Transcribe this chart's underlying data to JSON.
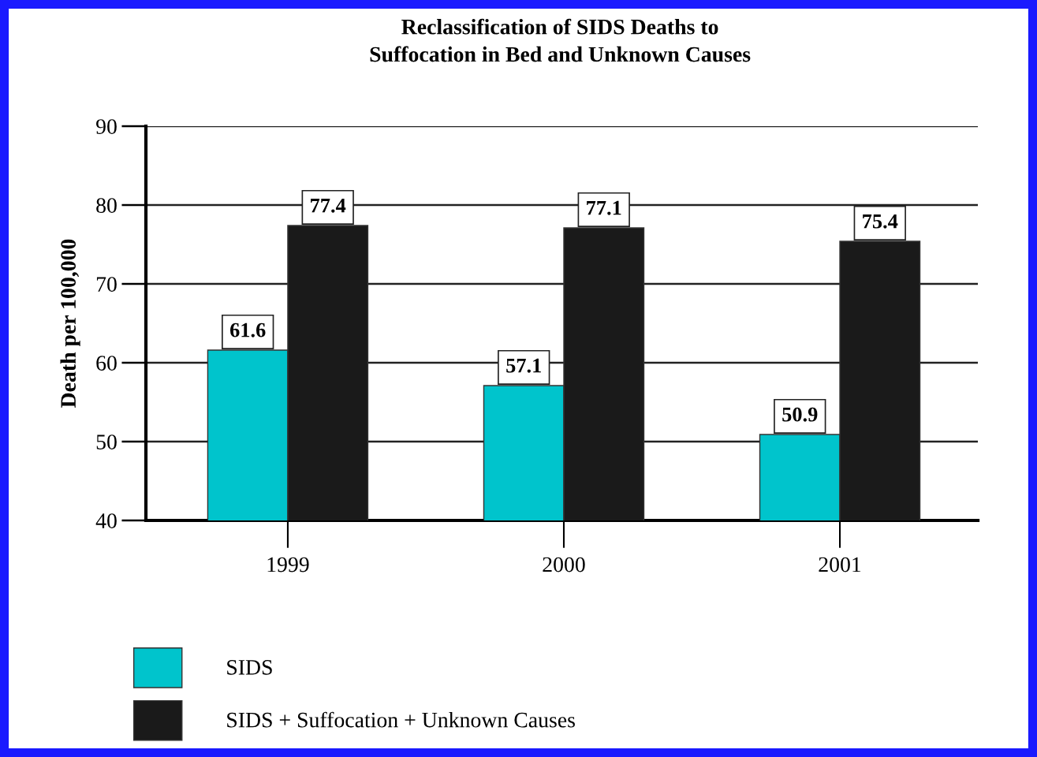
{
  "chart_data": {
    "type": "bar",
    "title": "Reclassification of SIDS Deaths to\nSuffocation in Bed and Unknown Causes",
    "ylabel": "Death per 100,000",
    "categories": [
      "1999",
      "2000",
      "2001"
    ],
    "series": [
      {
        "name": "SIDS",
        "color": "#00c4cc",
        "values": [
          61.6,
          57.1,
          50.9
        ]
      },
      {
        "name": "SIDS + Suffocation + Unknown Causes",
        "color": "#1a1a1a",
        "values": [
          77.4,
          77.1,
          75.4
        ]
      }
    ],
    "ylim": [
      40,
      90
    ],
    "yticks": [
      40,
      50,
      60,
      70,
      80,
      90
    ],
    "grid": "y",
    "legend": "bottom",
    "data_labels": true
  }
}
